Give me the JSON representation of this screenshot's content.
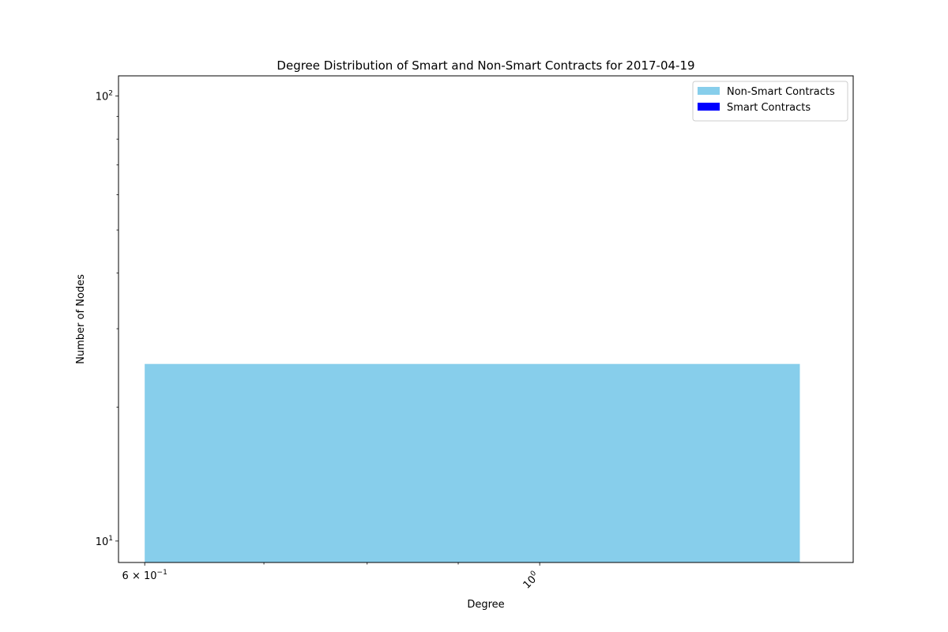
{
  "chart_data": {
    "type": "bar",
    "title": "Degree Distribution of Smart and Non-Smart Contracts for 2017-04-19",
    "xlabel": "Degree",
    "ylabel": "Number of Nodes",
    "x_scale": "log",
    "y_scale": "log",
    "xlim": [
      0.58,
      1.5
    ],
    "ylim": [
      8.95,
      111
    ],
    "x_ticks": [
      {
        "value": 0.6,
        "base": "6 × 10",
        "exp": "−1"
      },
      {
        "value": 1.0,
        "base": "10",
        "exp": "0"
      }
    ],
    "x_minor_ticks": [
      0.7,
      0.8,
      0.9
    ],
    "y_ticks": [
      {
        "value": 10,
        "base": "10",
        "exp": "1"
      },
      {
        "value": 100,
        "base": "10",
        "exp": "2"
      }
    ],
    "y_minor_ticks": [
      20,
      30,
      40,
      50,
      60,
      70,
      80,
      90
    ],
    "series": [
      {
        "name": "Non-Smart Contracts",
        "color": "#87ceeb",
        "bars": [
          {
            "x_start": 0.6,
            "x_end": 1.4,
            "value": 25
          }
        ]
      },
      {
        "name": "Smart Contracts",
        "color": "#0000ff",
        "bars": []
      }
    ],
    "legend": {
      "position": "top-right",
      "entries": [
        {
          "label": "Non-Smart Contracts",
          "color": "#87ceeb"
        },
        {
          "label": "Smart Contracts",
          "color": "#0000ff"
        }
      ]
    },
    "grid": false
  }
}
